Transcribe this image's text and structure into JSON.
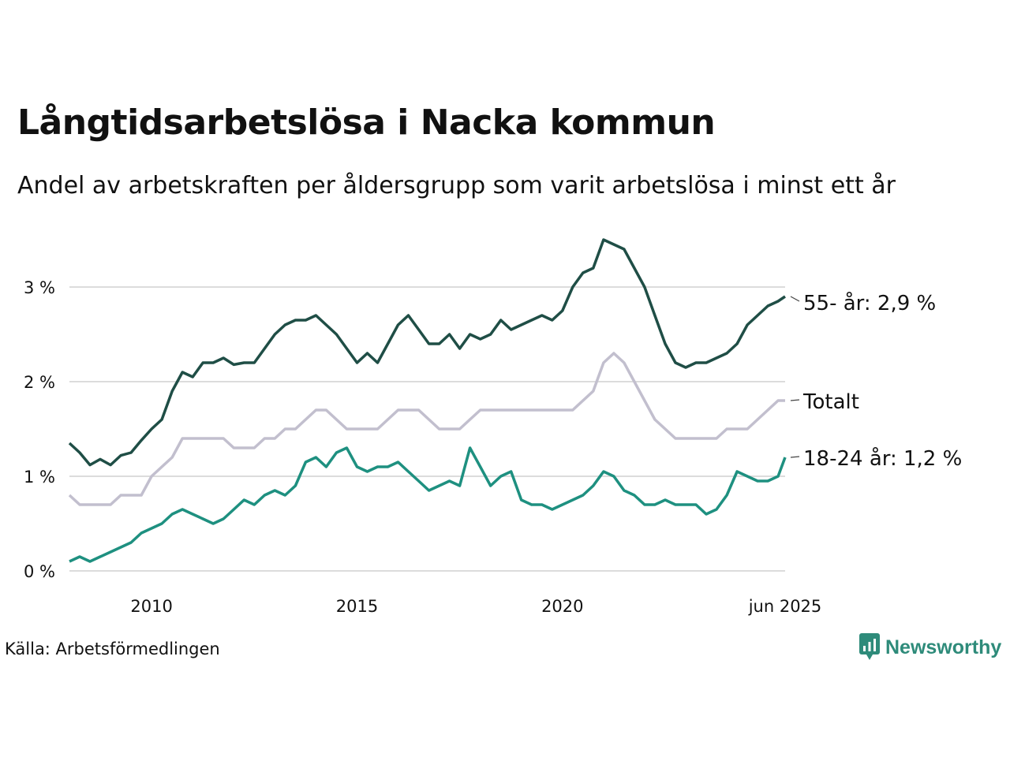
{
  "title": "Långtidsarbetslösa i Nacka kommun",
  "subtitle": "Andel av arbetskraften per åldersgrupp som varit arbetslösa i minst ett år",
  "source": "Källa: Arbetsförmedlingen",
  "brand": {
    "name": "Newsworthy",
    "icon": "newsworthy-logo-icon",
    "color": "#2e8b7a"
  },
  "chart_data": {
    "type": "line",
    "x_unit": "year (decimal, monthly data)",
    "x_range": [
      2008.0,
      2025.42
    ],
    "ylim": [
      0,
      3.6
    ],
    "y_unit": "%",
    "grid": "horizontal",
    "y_ticks": [
      {
        "value": 0,
        "label": "0 %"
      },
      {
        "value": 1,
        "label": "1 %"
      },
      {
        "value": 2,
        "label": "2 %"
      },
      {
        "value": 3,
        "label": "3 %"
      }
    ],
    "x_ticks": [
      {
        "value": 2010,
        "label": "2010"
      },
      {
        "value": 2015,
        "label": "2015"
      },
      {
        "value": 2020,
        "label": "2020"
      },
      {
        "value": 2025.42,
        "label": "jun 2025"
      }
    ],
    "legend_placement": "end-of-line labels",
    "series": [
      {
        "name": "55- år: 2,9 %",
        "color": "#1f4e46",
        "points": [
          [
            2008.0,
            1.35
          ],
          [
            2008.25,
            1.25
          ],
          [
            2008.5,
            1.12
          ],
          [
            2008.75,
            1.18
          ],
          [
            2009.0,
            1.12
          ],
          [
            2009.25,
            1.22
          ],
          [
            2009.5,
            1.25
          ],
          [
            2009.75,
            1.38
          ],
          [
            2010.0,
            1.5
          ],
          [
            2010.25,
            1.6
          ],
          [
            2010.5,
            1.9
          ],
          [
            2010.75,
            2.1
          ],
          [
            2011.0,
            2.05
          ],
          [
            2011.25,
            2.2
          ],
          [
            2011.5,
            2.2
          ],
          [
            2011.75,
            2.25
          ],
          [
            2012.0,
            2.18
          ],
          [
            2012.25,
            2.2
          ],
          [
            2012.5,
            2.2
          ],
          [
            2012.75,
            2.35
          ],
          [
            2013.0,
            2.5
          ],
          [
            2013.25,
            2.6
          ],
          [
            2013.5,
            2.65
          ],
          [
            2013.75,
            2.65
          ],
          [
            2014.0,
            2.7
          ],
          [
            2014.25,
            2.6
          ],
          [
            2014.5,
            2.5
          ],
          [
            2014.75,
            2.35
          ],
          [
            2015.0,
            2.2
          ],
          [
            2015.25,
            2.3
          ],
          [
            2015.5,
            2.2
          ],
          [
            2015.75,
            2.4
          ],
          [
            2016.0,
            2.6
          ],
          [
            2016.25,
            2.7
          ],
          [
            2016.5,
            2.55
          ],
          [
            2016.75,
            2.4
          ],
          [
            2017.0,
            2.4
          ],
          [
            2017.25,
            2.5
          ],
          [
            2017.5,
            2.35
          ],
          [
            2017.75,
            2.5
          ],
          [
            2018.0,
            2.45
          ],
          [
            2018.25,
            2.5
          ],
          [
            2018.5,
            2.65
          ],
          [
            2018.75,
            2.55
          ],
          [
            2019.0,
            2.6
          ],
          [
            2019.25,
            2.65
          ],
          [
            2019.5,
            2.7
          ],
          [
            2019.75,
            2.65
          ],
          [
            2020.0,
            2.75
          ],
          [
            2020.25,
            3.0
          ],
          [
            2020.5,
            3.15
          ],
          [
            2020.75,
            3.2
          ],
          [
            2021.0,
            3.5
          ],
          [
            2021.25,
            3.45
          ],
          [
            2021.5,
            3.4
          ],
          [
            2021.75,
            3.2
          ],
          [
            2022.0,
            3.0
          ],
          [
            2022.25,
            2.7
          ],
          [
            2022.5,
            2.4
          ],
          [
            2022.75,
            2.2
          ],
          [
            2023.0,
            2.15
          ],
          [
            2023.25,
            2.2
          ],
          [
            2023.5,
            2.2
          ],
          [
            2023.75,
            2.25
          ],
          [
            2024.0,
            2.3
          ],
          [
            2024.25,
            2.4
          ],
          [
            2024.5,
            2.6
          ],
          [
            2024.75,
            2.7
          ],
          [
            2025.0,
            2.8
          ],
          [
            2025.25,
            2.85
          ],
          [
            2025.42,
            2.9
          ]
        ]
      },
      {
        "name": "Totalt",
        "color": "#c2bfce",
        "points": [
          [
            2008.0,
            0.8
          ],
          [
            2008.25,
            0.7
          ],
          [
            2008.5,
            0.7
          ],
          [
            2008.75,
            0.7
          ],
          [
            2009.0,
            0.7
          ],
          [
            2009.25,
            0.8
          ],
          [
            2009.5,
            0.8
          ],
          [
            2009.75,
            0.8
          ],
          [
            2010.0,
            1.0
          ],
          [
            2010.25,
            1.1
          ],
          [
            2010.5,
            1.2
          ],
          [
            2010.75,
            1.4
          ],
          [
            2011.0,
            1.4
          ],
          [
            2011.25,
            1.4
          ],
          [
            2011.5,
            1.4
          ],
          [
            2011.75,
            1.4
          ],
          [
            2012.0,
            1.3
          ],
          [
            2012.25,
            1.3
          ],
          [
            2012.5,
            1.3
          ],
          [
            2012.75,
            1.4
          ],
          [
            2013.0,
            1.4
          ],
          [
            2013.25,
            1.5
          ],
          [
            2013.5,
            1.5
          ],
          [
            2013.75,
            1.6
          ],
          [
            2014.0,
            1.7
          ],
          [
            2014.25,
            1.7
          ],
          [
            2014.5,
            1.6
          ],
          [
            2014.75,
            1.5
          ],
          [
            2015.0,
            1.5
          ],
          [
            2015.25,
            1.5
          ],
          [
            2015.5,
            1.5
          ],
          [
            2015.75,
            1.6
          ],
          [
            2016.0,
            1.7
          ],
          [
            2016.25,
            1.7
          ],
          [
            2016.5,
            1.7
          ],
          [
            2016.75,
            1.6
          ],
          [
            2017.0,
            1.5
          ],
          [
            2017.25,
            1.5
          ],
          [
            2017.5,
            1.5
          ],
          [
            2017.75,
            1.6
          ],
          [
            2018.0,
            1.7
          ],
          [
            2018.25,
            1.7
          ],
          [
            2018.5,
            1.7
          ],
          [
            2018.75,
            1.7
          ],
          [
            2019.0,
            1.7
          ],
          [
            2019.25,
            1.7
          ],
          [
            2019.5,
            1.7
          ],
          [
            2019.75,
            1.7
          ],
          [
            2020.0,
            1.7
          ],
          [
            2020.25,
            1.7
          ],
          [
            2020.5,
            1.8
          ],
          [
            2020.75,
            1.9
          ],
          [
            2021.0,
            2.2
          ],
          [
            2021.25,
            2.3
          ],
          [
            2021.5,
            2.2
          ],
          [
            2021.75,
            2.0
          ],
          [
            2022.0,
            1.8
          ],
          [
            2022.25,
            1.6
          ],
          [
            2022.5,
            1.5
          ],
          [
            2022.75,
            1.4
          ],
          [
            2023.0,
            1.4
          ],
          [
            2023.25,
            1.4
          ],
          [
            2023.5,
            1.4
          ],
          [
            2023.75,
            1.4
          ],
          [
            2024.0,
            1.5
          ],
          [
            2024.25,
            1.5
          ],
          [
            2024.5,
            1.5
          ],
          [
            2024.75,
            1.6
          ],
          [
            2025.0,
            1.7
          ],
          [
            2025.25,
            1.8
          ],
          [
            2025.42,
            1.8
          ]
        ]
      },
      {
        "name": "18-24 år: 1,2 %",
        "color": "#1e9080",
        "points": [
          [
            2008.0,
            0.1
          ],
          [
            2008.25,
            0.15
          ],
          [
            2008.5,
            0.1
          ],
          [
            2008.75,
            0.15
          ],
          [
            2009.0,
            0.2
          ],
          [
            2009.25,
            0.25
          ],
          [
            2009.5,
            0.3
          ],
          [
            2009.75,
            0.4
          ],
          [
            2010.0,
            0.45
          ],
          [
            2010.25,
            0.5
          ],
          [
            2010.5,
            0.6
          ],
          [
            2010.75,
            0.65
          ],
          [
            2011.0,
            0.6
          ],
          [
            2011.25,
            0.55
          ],
          [
            2011.5,
            0.5
          ],
          [
            2011.75,
            0.55
          ],
          [
            2012.0,
            0.65
          ],
          [
            2012.25,
            0.75
          ],
          [
            2012.5,
            0.7
          ],
          [
            2012.75,
            0.8
          ],
          [
            2013.0,
            0.85
          ],
          [
            2013.25,
            0.8
          ],
          [
            2013.5,
            0.9
          ],
          [
            2013.75,
            1.15
          ],
          [
            2014.0,
            1.2
          ],
          [
            2014.25,
            1.1
          ],
          [
            2014.5,
            1.25
          ],
          [
            2014.75,
            1.3
          ],
          [
            2015.0,
            1.1
          ],
          [
            2015.25,
            1.05
          ],
          [
            2015.5,
            1.1
          ],
          [
            2015.75,
            1.1
          ],
          [
            2016.0,
            1.15
          ],
          [
            2016.25,
            1.05
          ],
          [
            2016.5,
            0.95
          ],
          [
            2016.75,
            0.85
          ],
          [
            2017.0,
            0.9
          ],
          [
            2017.25,
            0.95
          ],
          [
            2017.5,
            0.9
          ],
          [
            2017.75,
            1.3
          ],
          [
            2018.0,
            1.1
          ],
          [
            2018.25,
            0.9
          ],
          [
            2018.5,
            1.0
          ],
          [
            2018.75,
            1.05
          ],
          [
            2019.0,
            0.75
          ],
          [
            2019.25,
            0.7
          ],
          [
            2019.5,
            0.7
          ],
          [
            2019.75,
            0.65
          ],
          [
            2020.0,
            0.7
          ],
          [
            2020.25,
            0.75
          ],
          [
            2020.5,
            0.8
          ],
          [
            2020.75,
            0.9
          ],
          [
            2021.0,
            1.05
          ],
          [
            2021.25,
            1.0
          ],
          [
            2021.5,
            0.85
          ],
          [
            2021.75,
            0.8
          ],
          [
            2022.0,
            0.7
          ],
          [
            2022.25,
            0.7
          ],
          [
            2022.5,
            0.75
          ],
          [
            2022.75,
            0.7
          ],
          [
            2023.0,
            0.7
          ],
          [
            2023.25,
            0.7
          ],
          [
            2023.5,
            0.6
          ],
          [
            2023.75,
            0.65
          ],
          [
            2024.0,
            0.8
          ],
          [
            2024.25,
            1.05
          ],
          [
            2024.5,
            1.0
          ],
          [
            2024.75,
            0.95
          ],
          [
            2025.0,
            0.95
          ],
          [
            2025.25,
            1.0
          ],
          [
            2025.42,
            1.2
          ]
        ]
      }
    ]
  }
}
